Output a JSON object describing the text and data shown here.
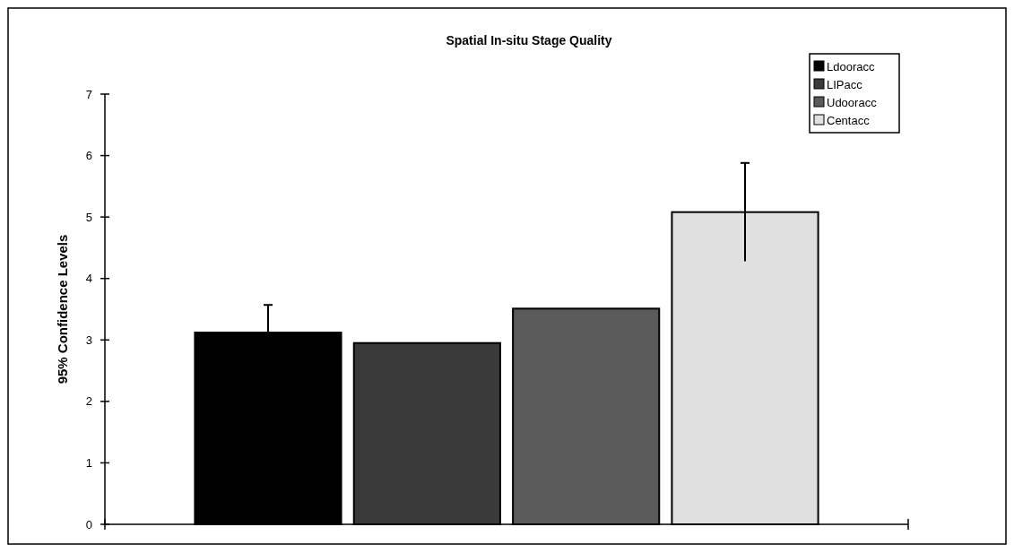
{
  "chart_data": {
    "type": "bar",
    "title": "Spatial In-situ Stage Quality",
    "ylabel": "95% Confidence Levels",
    "categories": [
      null
    ],
    "series": [
      {
        "name": "Ldooracc",
        "color": "#000000",
        "values": [
          3.12
        ],
        "errors": [
          0.45
        ]
      },
      {
        "name": "LIPacc",
        "color": "#3a3a3a",
        "values": [
          2.95
        ]
      },
      {
        "name": "Udooracc",
        "color": "#5a5a5a",
        "values": [
          3.51
        ]
      },
      {
        "name": "Centacc",
        "color": "#e0e0e0",
        "values": [
          5.08
        ],
        "errors": [
          0.8
        ]
      }
    ],
    "ylim": [
      0,
      7
    ],
    "yticks": [
      0,
      1,
      2,
      3,
      4,
      5,
      6,
      7
    ],
    "legend": "top right",
    "grid": false
  }
}
